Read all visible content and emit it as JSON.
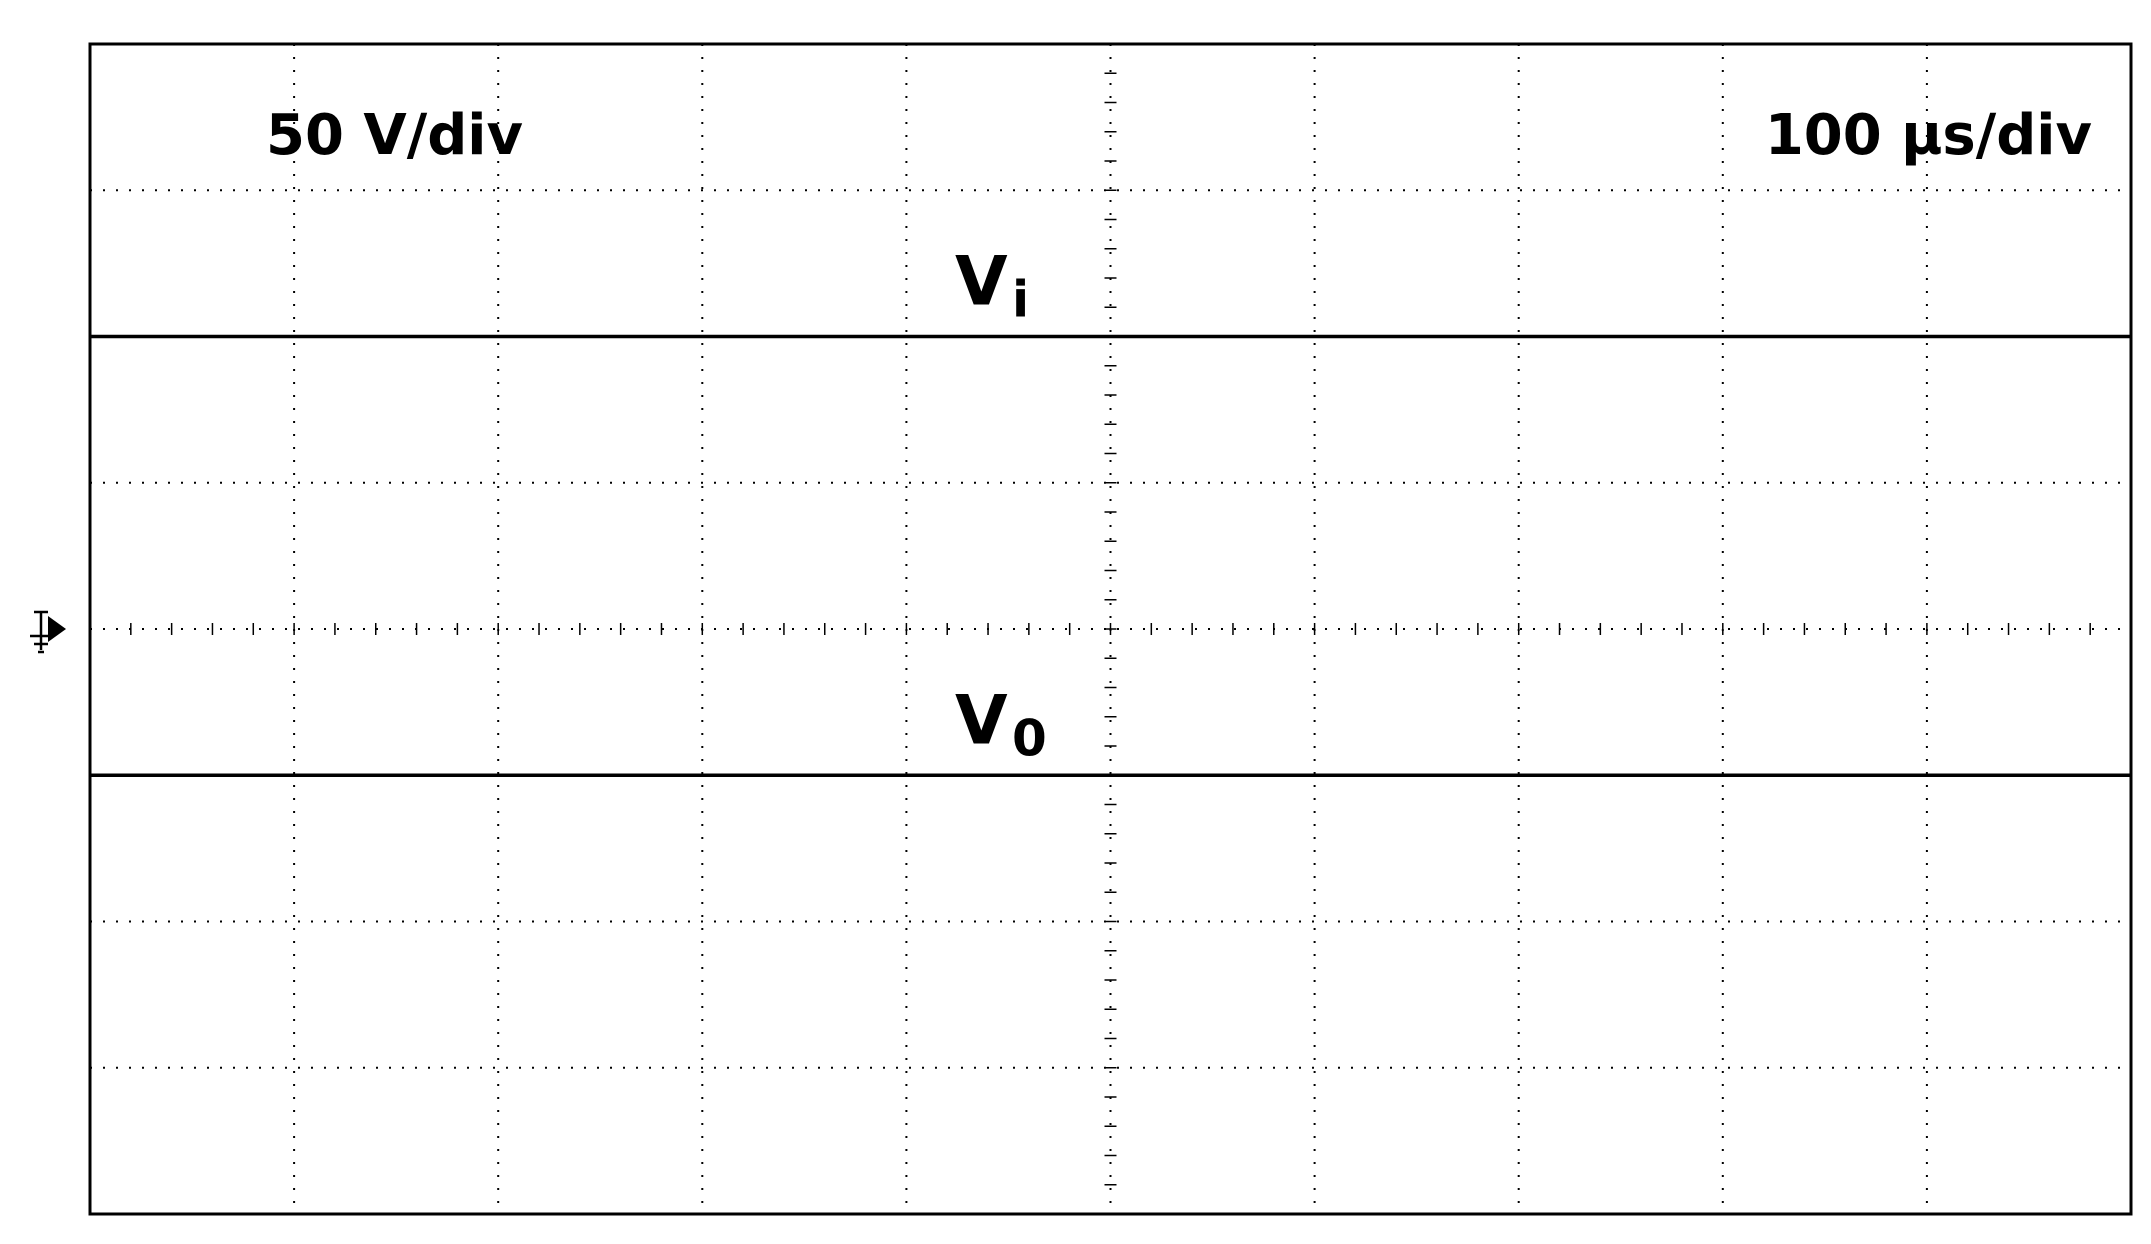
{
  "chart_data": {
    "type": "line",
    "annotations": {
      "volts_per_div": "50 V/div",
      "time_per_div": "100 µs/div"
    },
    "x": [
      0,
      1000
    ],
    "series": [
      {
        "label": "V",
        "label_sub": "i",
        "color": "#000000",
        "values": [
          100,
          100
        ]
      },
      {
        "label": "V",
        "label_sub": "0",
        "color": "#000000",
        "values": [
          -50,
          -50
        ]
      }
    ],
    "xlim": [
      0,
      1000
    ],
    "ylim": [
      -200,
      200
    ],
    "xticks": [
      100,
      200,
      300,
      400,
      500,
      600,
      700,
      800,
      900
    ],
    "yticks": [
      -150,
      -100,
      -50,
      0,
      50,
      100,
      150
    ],
    "grid": true
  }
}
